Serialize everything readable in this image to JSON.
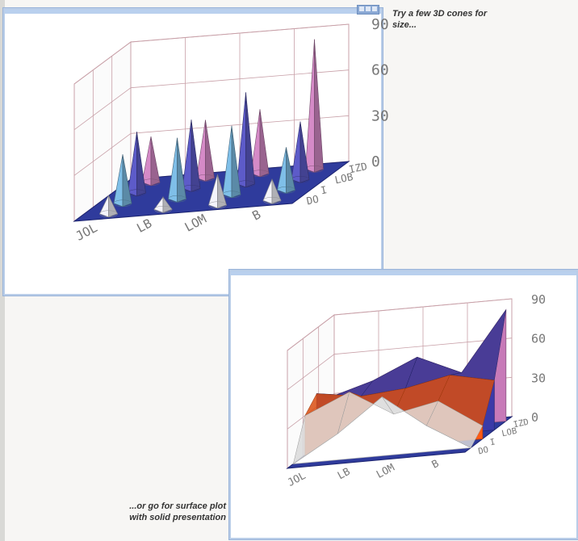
{
  "captions": {
    "top": "Try a few 3D cones for size...",
    "bottom": "...or go for surface plot with solid presentation"
  },
  "chart_data": [
    {
      "type": "3d-cone",
      "title": "",
      "zlim": [
        0,
        90
      ],
      "z_ticks": [
        "90",
        "60",
        "30",
        "0"
      ],
      "x_ticks": [
        "JOL",
        "LB",
        "LOM",
        "B"
      ],
      "depth_ticks": [
        "DO",
        "I",
        "LOB",
        "IZD"
      ],
      "series": [
        {
          "values": [
            12,
            8,
            20,
            14
          ]
        },
        {
          "values": [
            32,
            40,
            45,
            28
          ]
        },
        {
          "values": [
            40,
            45,
            60,
            38
          ]
        },
        {
          "values": [
            30,
            38,
            42,
            85
          ]
        }
      ],
      "colors": [
        "#f4f4fb",
        "#7fbfe8",
        "#5d5bc9",
        "#d58ac7"
      ],
      "floor_color": "#2f3b9c"
    },
    {
      "type": "3d-surface",
      "title": "",
      "zlim": [
        0,
        90
      ],
      "z_ticks": [
        "90",
        "60",
        "30",
        "0"
      ],
      "x_ticks": [
        "JOL",
        "LB",
        "LOM",
        "B"
      ],
      "depth_ticks": [
        "DO",
        "I",
        "LOB",
        "IZD"
      ],
      "series": [
        {
          "values": [
            0,
            20,
            45,
            20,
            0
          ]
        },
        {
          "values": [
            30,
            45,
            25,
            32,
            10
          ]
        },
        {
          "values": [
            40,
            35,
            38,
            45,
            38
          ]
        },
        {
          "values": [
            30,
            40,
            55,
            40,
            85
          ]
        }
      ],
      "colors": [
        "#ffffff",
        "#ff5a14",
        "#3b3aa8",
        "#c77ab8"
      ],
      "floor_color": "#2f3b9c"
    }
  ]
}
